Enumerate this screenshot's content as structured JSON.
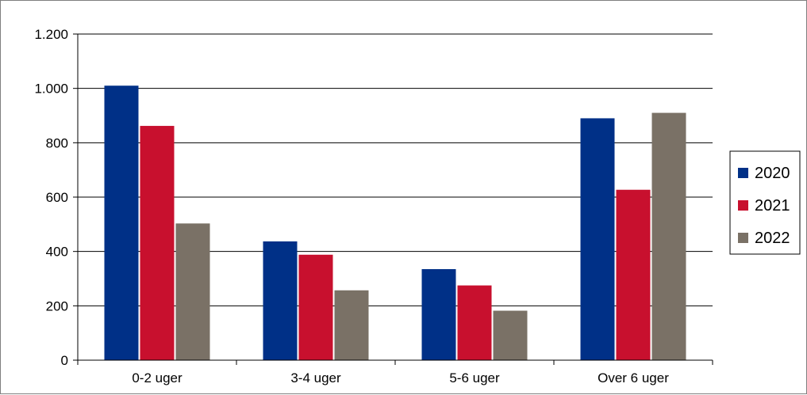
{
  "chart_data": {
    "type": "bar",
    "title": "",
    "xlabel": "",
    "ylabel": "",
    "categories": [
      "0-2 uger",
      "3-4 uger",
      "5-6 uger",
      "Over 6 uger"
    ],
    "series": [
      {
        "name": "2020",
        "color": "#003087",
        "values": [
          1010,
          437,
          335,
          890
        ]
      },
      {
        "name": "2021",
        "color": "#c8102e",
        "values": [
          862,
          388,
          275,
          627
        ]
      },
      {
        "name": "2022",
        "color": "#7a7166",
        "values": [
          503,
          257,
          182,
          910
        ]
      }
    ],
    "ylim": [
      0,
      1200
    ],
    "yticks": [
      0,
      200,
      400,
      600,
      800,
      1000,
      1200
    ],
    "ytick_labels": [
      "0",
      "200",
      "400",
      "600",
      "800",
      "1.000",
      "1.200"
    ],
    "grid": true,
    "legend_position": "right"
  }
}
